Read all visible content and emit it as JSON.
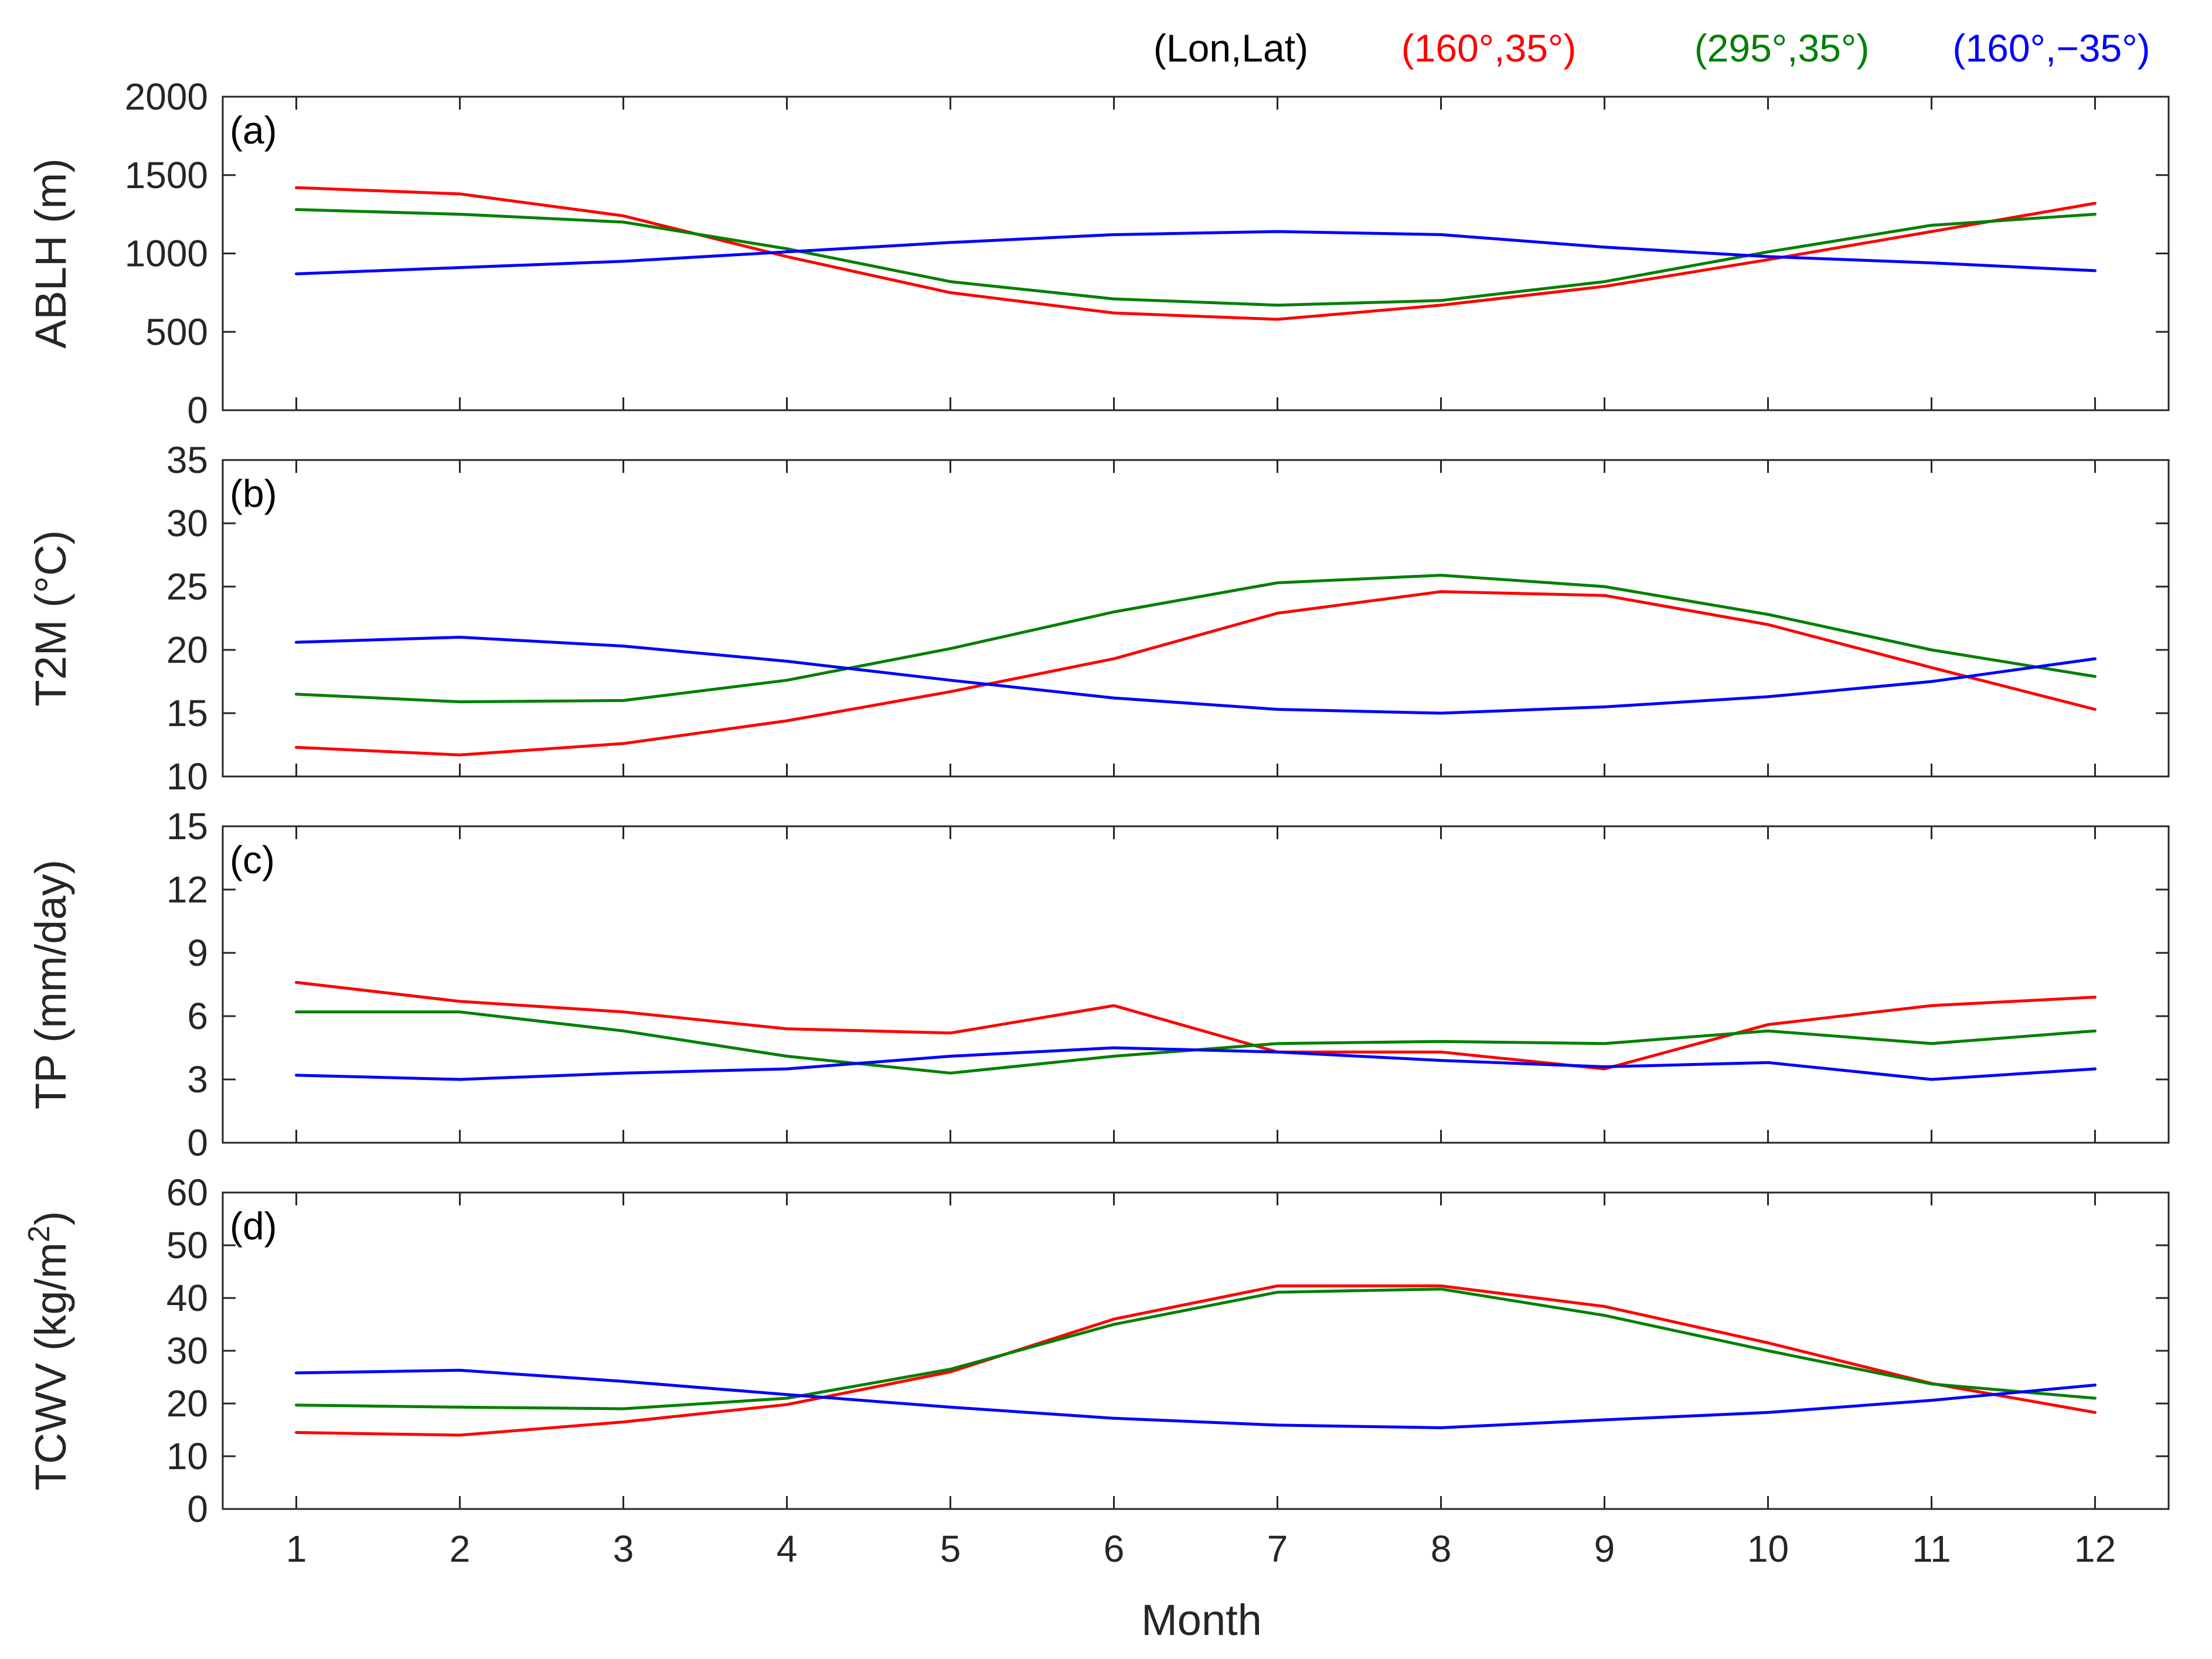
{
  "chart_data": {
    "type": "line",
    "xlabel": "Month",
    "x": [
      1,
      2,
      3,
      4,
      5,
      6,
      7,
      8,
      9,
      10,
      11,
      12
    ],
    "xtick_labels": [
      "1",
      "2",
      "3",
      "4",
      "5",
      "6",
      "7",
      "8",
      "9",
      "10",
      "11",
      "12"
    ],
    "xlim": [
      0.55,
      12.45
    ],
    "legend": {
      "title": "(Lon,Lat)",
      "placement": "top-right",
      "entries": [
        {
          "name": "(160°,35°)",
          "color": "#ff0000"
        },
        {
          "name": "(295°,35°)",
          "color": "#008000"
        },
        {
          "name": "(160°,−35°)",
          "color": "#0000ff"
        }
      ]
    },
    "panels": [
      {
        "panel_label": "(a)",
        "ylabel": "ABLH (m)",
        "ylim": [
          0,
          2000
        ],
        "yticks": [
          0,
          500,
          1000,
          1500,
          2000
        ],
        "series": [
          {
            "name": "(160°,35°)",
            "color": "#ff0000",
            "values": [
              1420,
              1380,
              1240,
              980,
              750,
              620,
              580,
              670,
              790,
              960,
              1140,
              1320
            ]
          },
          {
            "name": "(295°,35°)",
            "color": "#008000",
            "values": [
              1280,
              1250,
              1200,
              1030,
              820,
              710,
              670,
              700,
              820,
              1010,
              1180,
              1250
            ]
          },
          {
            "name": "(160°,−35°)",
            "color": "#0000ff",
            "values": [
              870,
              910,
              950,
              1010,
              1070,
              1120,
              1140,
              1120,
              1040,
              980,
              940,
              890
            ]
          }
        ]
      },
      {
        "panel_label": "(b)",
        "ylabel": "T2M (°C)",
        "ylim": [
          10,
          35
        ],
        "yticks": [
          10,
          15,
          20,
          25,
          30,
          35
        ],
        "series": [
          {
            "name": "(160°,35°)",
            "color": "#ff0000",
            "values": [
              12.3,
              11.7,
              12.6,
              14.4,
              16.7,
              19.3,
              22.9,
              24.6,
              24.3,
              22.0,
              18.6,
              15.3
            ]
          },
          {
            "name": "(295°,35°)",
            "color": "#008000",
            "values": [
              16.5,
              15.9,
              16.0,
              17.6,
              20.1,
              23.0,
              25.3,
              25.9,
              25.0,
              22.8,
              20.0,
              17.9
            ]
          },
          {
            "name": "(160°,−35°)",
            "color": "#0000ff",
            "values": [
              20.6,
              21.0,
              20.3,
              19.1,
              17.6,
              16.2,
              15.3,
              15.0,
              15.5,
              16.3,
              17.5,
              19.3
            ]
          }
        ]
      },
      {
        "panel_label": "(c)",
        "ylabel": "TP (mm/day)",
        "ylim": [
          0,
          15
        ],
        "yticks": [
          0,
          3,
          6,
          9,
          12,
          15
        ],
        "series": [
          {
            "name": "(160°,35°)",
            "color": "#ff0000",
            "values": [
              7.6,
              6.7,
              6.2,
              5.4,
              5.2,
              6.5,
              4.3,
              4.3,
              3.5,
              5.6,
              6.5,
              6.9
            ]
          },
          {
            "name": "(295°,35°)",
            "color": "#008000",
            "values": [
              6.2,
              6.2,
              5.3,
              4.1,
              3.3,
              4.1,
              4.7,
              4.8,
              4.7,
              5.3,
              4.7,
              5.3
            ]
          },
          {
            "name": "(160°,−35°)",
            "color": "#0000ff",
            "values": [
              3.2,
              3.0,
              3.3,
              3.5,
              4.1,
              4.5,
              4.3,
              3.9,
              3.6,
              3.8,
              3.0,
              3.5
            ]
          }
        ]
      },
      {
        "panel_label": "(d)",
        "ylabel": "TCWV (kg/m²)",
        "ylim": [
          0,
          60
        ],
        "yticks": [
          0,
          10,
          20,
          30,
          40,
          50,
          60
        ],
        "series": [
          {
            "name": "(160°,35°)",
            "color": "#ff0000",
            "values": [
              14.5,
              14.0,
              16.5,
              19.8,
              26.0,
              36.0,
              42.3,
              42.3,
              38.4,
              31.5,
              23.8,
              18.3
            ]
          },
          {
            "name": "(295°,35°)",
            "color": "#008000",
            "values": [
              19.7,
              19.3,
              19.0,
              21.0,
              26.5,
              35.0,
              41.1,
              41.7,
              36.7,
              30.0,
              23.7,
              21.0
            ]
          },
          {
            "name": "(160°,−35°)",
            "color": "#0000ff",
            "values": [
              25.8,
              26.3,
              24.2,
              21.7,
              19.3,
              17.2,
              15.9,
              15.4,
              16.9,
              18.3,
              20.6,
              23.5
            ]
          }
        ]
      }
    ]
  }
}
